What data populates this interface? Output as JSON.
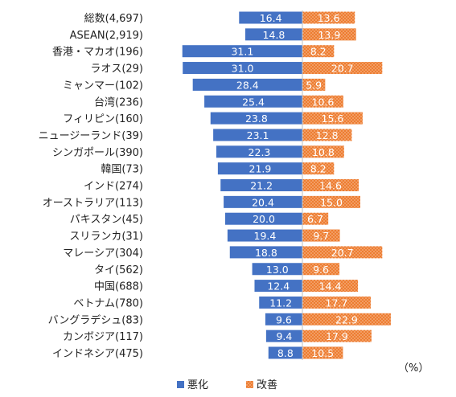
{
  "chart_data": {
    "type": "bar",
    "orientation": "horizontal-diverging",
    "categories": [
      "総数(4,697)",
      "ASEAN(2,919)",
      "香港・マカオ(196)",
      "ラオス(29)",
      "ミャンマー(102)",
      "台湾(236)",
      "フィリピン(160)",
      "ニュージーランド(39)",
      "シンガポール(390)",
      "韓国(73)",
      "インド(274)",
      "オーストラリア(113)",
      "パキスタン(45)",
      "スリランカ(31)",
      "マレーシア(304)",
      "タイ(562)",
      "中国(688)",
      "ベトナム(780)",
      "バングラデシュ(83)",
      "カンボジア(117)",
      "インドネシア(475)"
    ],
    "series": [
      {
        "name": "悪化",
        "color": "#4472c4",
        "direction": "left",
        "values": [
          16.4,
          14.8,
          31.1,
          31.0,
          28.4,
          25.4,
          23.8,
          23.1,
          22.3,
          21.9,
          21.2,
          20.4,
          20.0,
          19.4,
          18.8,
          13.0,
          12.4,
          11.2,
          9.6,
          9.4,
          8.8
        ]
      },
      {
        "name": "改善",
        "color": "#ed7d31",
        "direction": "right",
        "pattern": "dotted",
        "values": [
          13.6,
          13.9,
          8.2,
          20.7,
          5.9,
          10.6,
          15.6,
          12.8,
          10.8,
          8.2,
          14.6,
          15.0,
          6.7,
          9.7,
          20.7,
          9.6,
          14.4,
          17.7,
          22.9,
          17.9,
          10.5
        ]
      }
    ],
    "unit": "（%）",
    "legend": "bottom-center",
    "grid": false
  }
}
